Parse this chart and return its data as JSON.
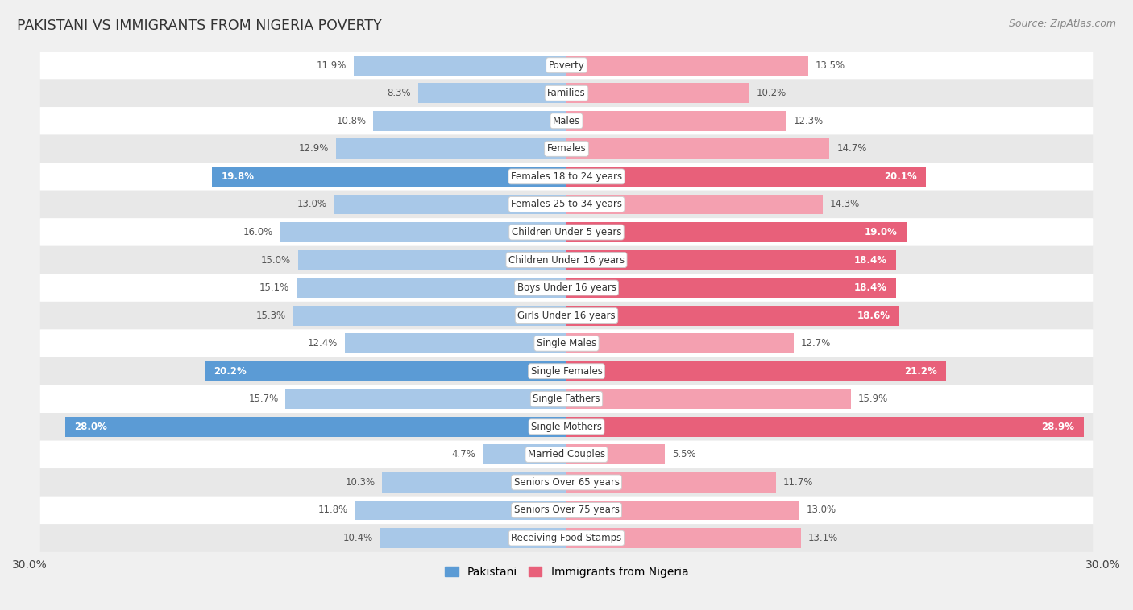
{
  "title": "PAKISTANI VS IMMIGRANTS FROM NIGERIA POVERTY",
  "source": "Source: ZipAtlas.com",
  "categories": [
    "Poverty",
    "Families",
    "Males",
    "Females",
    "Females 18 to 24 years",
    "Females 25 to 34 years",
    "Children Under 5 years",
    "Children Under 16 years",
    "Boys Under 16 years",
    "Girls Under 16 years",
    "Single Males",
    "Single Females",
    "Single Fathers",
    "Single Mothers",
    "Married Couples",
    "Seniors Over 65 years",
    "Seniors Over 75 years",
    "Receiving Food Stamps"
  ],
  "pakistani": [
    11.9,
    8.3,
    10.8,
    12.9,
    19.8,
    13.0,
    16.0,
    15.0,
    15.1,
    15.3,
    12.4,
    20.2,
    15.7,
    28.0,
    4.7,
    10.3,
    11.8,
    10.4
  ],
  "nigeria": [
    13.5,
    10.2,
    12.3,
    14.7,
    20.1,
    14.3,
    19.0,
    18.4,
    18.4,
    18.6,
    12.7,
    21.2,
    15.9,
    28.9,
    5.5,
    11.7,
    13.0,
    13.1
  ],
  "pakistani_color_normal": "#a8c8e8",
  "pakistani_color_highlight": "#5b9bd5",
  "nigeria_color_normal": "#f4a0b0",
  "nigeria_color_highlight": "#e8607a",
  "label_color_normal": "#555555",
  "label_color_highlight": "#ffffff",
  "highlight_threshold": 18.0,
  "x_max": 30.0,
  "legend_pakistani": "Pakistani",
  "legend_nigeria": "Immigrants from Nigeria",
  "bg_color": "#f0f0f0",
  "row_bg_even": "#ffffff",
  "row_bg_odd": "#e8e8e8"
}
